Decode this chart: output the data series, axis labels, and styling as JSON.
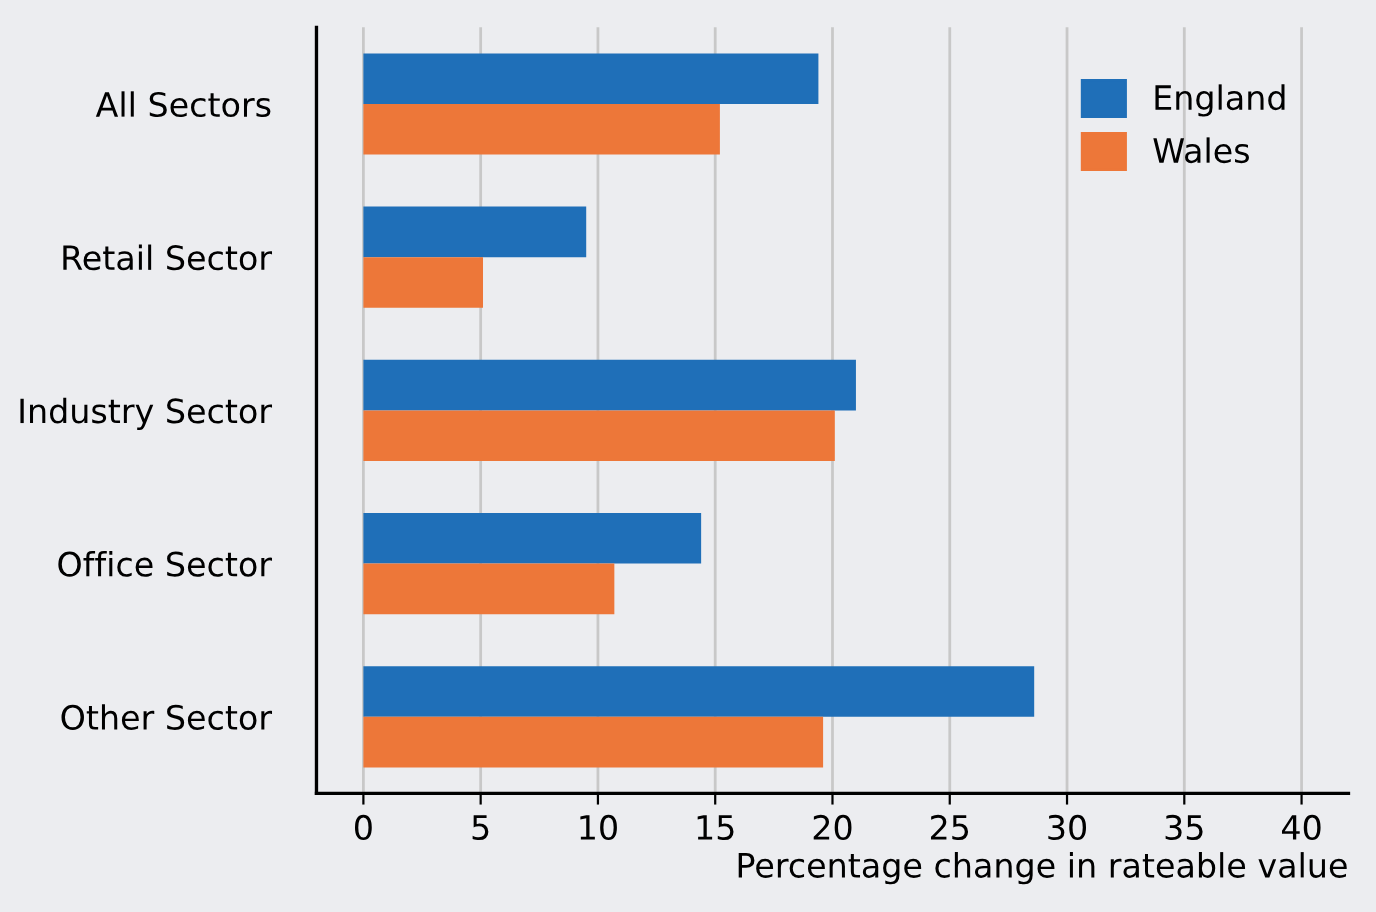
{
  "chart_data": {
    "type": "bar",
    "orientation": "horizontal",
    "categories": [
      "All Sectors",
      "Retail Sector",
      "Industry Sector",
      "Office Sector",
      "Other Sector"
    ],
    "series": [
      {
        "name": "England",
        "color": "#1f6fb8",
        "values": [
          19.4,
          9.5,
          21.0,
          14.4,
          28.6
        ]
      },
      {
        "name": "Wales",
        "color": "#ed7739",
        "values": [
          15.2,
          5.1,
          20.1,
          10.7,
          19.6
        ]
      }
    ],
    "xlabel": "Percentage change in rateable value",
    "xlim": [
      -2,
      42
    ],
    "xticks": [
      0,
      5,
      10,
      15,
      20,
      25,
      30,
      35,
      40
    ],
    "grid": "x",
    "legend": "top right"
  }
}
